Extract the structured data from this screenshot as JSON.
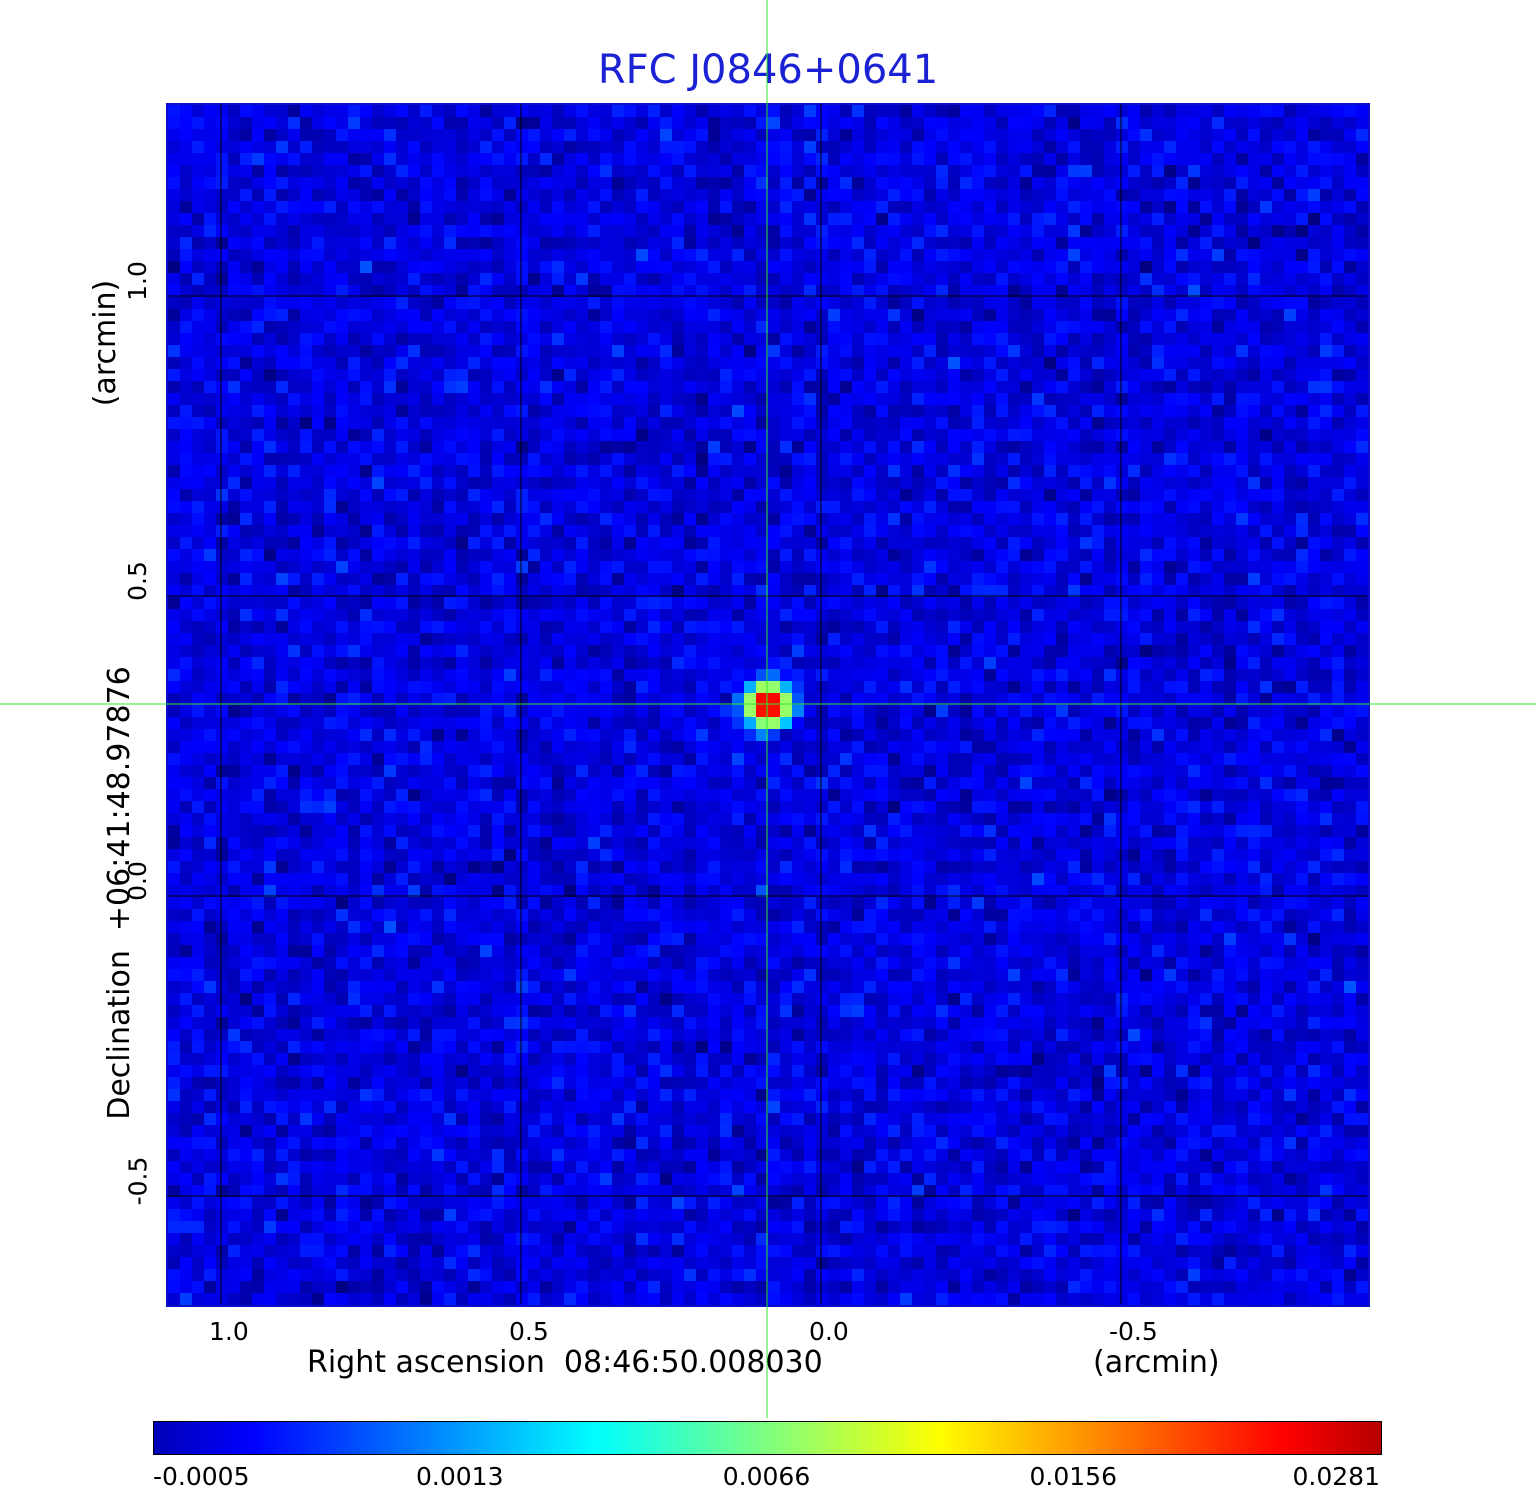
{
  "chart_data": {
    "type": "heatmap",
    "title": "RFC J0846+0641",
    "xlabel": "Right ascension  08:46:50.008030",
    "xunit": "(arcmin)",
    "ylabel": "Declination  +06:41:48.97876",
    "yunit": "(arcmin)",
    "xlim": [
      1.09,
      -0.91
    ],
    "ylim": [
      -0.68,
      1.32
    ],
    "x_ticks": [
      1.0,
      0.5,
      0.0,
      -0.5
    ],
    "x_tick_labels": [
      "1.0",
      "0.5",
      "0.0",
      "-0.5"
    ],
    "y_ticks": [
      1.0,
      0.5,
      0.0,
      -0.5
    ],
    "y_tick_labels": [
      "1.0",
      "0.5",
      "0.0",
      "-0.5"
    ],
    "grid": true,
    "source": {
      "x": 0.09,
      "y": 0.32,
      "peak": 0.0281,
      "fwhm": 0.045
    },
    "crosshair": {
      "x": 0.09,
      "y": 0.32
    },
    "background_level": 0.0002,
    "noise_rms": 0.00025,
    "colormap": "jet",
    "colorbar": {
      "min": -0.0005,
      "max": 0.0281,
      "ticks": [
        -0.0005,
        0.0013,
        0.0066,
        0.0156,
        0.0281
      ],
      "tick_labels": [
        "-0.0005",
        "0.0013",
        "0.0066",
        "0.0156",
        "0.0281"
      ]
    }
  },
  "colors": {
    "title": "#1a22d4",
    "frame": "#0a10c8",
    "crosshair": "#2ee82e",
    "grid": "#000000"
  }
}
